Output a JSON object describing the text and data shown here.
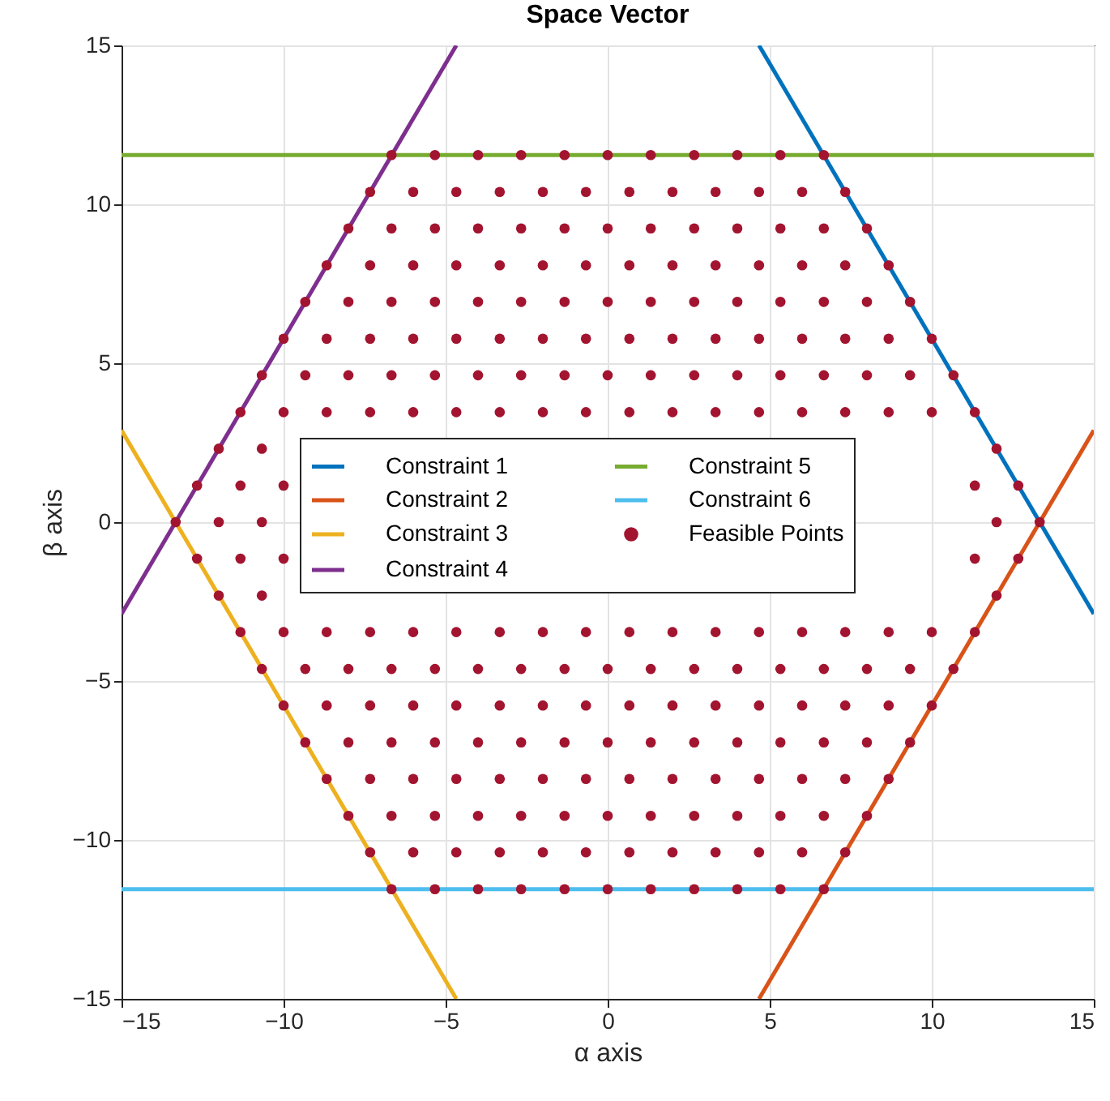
{
  "chart_data": {
    "type": "line",
    "title": "Space Vector",
    "xlabel": "α axis",
    "ylabel": "β axis",
    "xlim": [
      -15,
      15
    ],
    "ylim": [
      -15,
      15
    ],
    "xticks": [
      -15,
      -10,
      -5,
      0,
      5,
      10,
      15
    ],
    "yticks": [
      -15,
      -10,
      -5,
      0,
      5,
      10,
      15
    ],
    "grid": true,
    "legend": "center",
    "series": [
      {
        "name": "Constraint 1",
        "color": "#0072bd",
        "x": [
          4.67,
          15
        ],
        "values": [
          15,
          -2.89
        ]
      },
      {
        "name": "Constraint 2",
        "color": "#d95319",
        "x": [
          4.67,
          15
        ],
        "values": [
          -15,
          2.89
        ]
      },
      {
        "name": "Constraint 3",
        "color": "#edb120",
        "x": [
          -15,
          -4.67
        ],
        "values": [
          2.89,
          -15
        ]
      },
      {
        "name": "Constraint 4",
        "color": "#7e2f8e",
        "x": [
          -15,
          -4.67
        ],
        "values": [
          -2.89,
          15
        ]
      },
      {
        "name": "Constraint 5",
        "color": "#77ac30",
        "x": [
          -15,
          15
        ],
        "values": [
          11.55,
          11.55
        ]
      },
      {
        "name": "Constraint 6",
        "color": "#4dbeee",
        "x": [
          -15,
          15
        ],
        "values": [
          -11.55,
          -11.55
        ]
      },
      {
        "name": "Feasible Points",
        "type": "scatter",
        "marker": "circle",
        "color": "#a2142f",
        "x": [
          -6.67,
          -5.33,
          -4,
          -2.67,
          -1.33,
          0,
          1.33,
          2.67,
          4,
          5.33,
          6.67,
          -7.33,
          -6,
          -4.67,
          -3.33,
          -2,
          -0.67,
          0.67,
          2,
          3.33,
          4.67,
          6,
          7.33,
          -8,
          -6.67,
          -5.33,
          -4,
          -2.67,
          -1.33,
          0,
          1.33,
          2.67,
          4,
          5.33,
          6.67,
          8,
          -8.67,
          -7.33,
          -6,
          -4.67,
          -3.33,
          -2,
          -0.67,
          0.67,
          2,
          3.33,
          4.67,
          6,
          7.33,
          8.67,
          -9.33,
          -8,
          -6.67,
          -5.33,
          -4,
          -2.67,
          -1.33,
          0,
          1.33,
          2.67,
          4,
          5.33,
          6.67,
          8,
          9.33,
          -10,
          -8.67,
          -7.33,
          -6,
          -4.67,
          -3.33,
          -2,
          -0.67,
          0.67,
          2,
          3.33,
          4.67,
          6,
          7.33,
          8.67,
          10,
          -10.67,
          -9.33,
          -8,
          -6.67,
          -5.33,
          -4,
          -2.67,
          -1.33,
          0,
          1.33,
          2.67,
          4,
          5.33,
          6.67,
          8,
          9.33,
          10.67,
          -11.33,
          -10,
          -8.67,
          -7.33,
          -6,
          -4.67,
          -3.33,
          -2,
          -0.67,
          0.67,
          2,
          3.33,
          4.67,
          6,
          7.33,
          8.67,
          10,
          11.33,
          -12,
          -10.67,
          12,
          -12.67,
          -11.33,
          -10,
          11.33,
          12.67,
          -13.33,
          -12,
          -10.67,
          12,
          13.33,
          -12.67,
          -11.33,
          -10,
          11.33,
          12.67,
          -12,
          -10.67,
          12,
          -11.33,
          -10,
          -8.67,
          -7.33,
          -6,
          -4.67,
          -3.33,
          -2,
          -0.67,
          0.67,
          2,
          3.33,
          4.67,
          6,
          7.33,
          8.67,
          10,
          11.33,
          -10.67,
          -9.33,
          -8,
          -6.67,
          -5.33,
          -4,
          -2.67,
          -1.33,
          0,
          1.33,
          2.67,
          4,
          5.33,
          6.67,
          8,
          9.33,
          10.67,
          -10,
          -8.67,
          -7.33,
          -6,
          -4.67,
          -3.33,
          -2,
          -0.67,
          0.67,
          2,
          3.33,
          4.67,
          6,
          7.33,
          8.67,
          10,
          -9.33,
          -8,
          -6.67,
          -5.33,
          -4,
          -2.67,
          -1.33,
          0,
          1.33,
          2.67,
          4,
          5.33,
          6.67,
          8,
          9.33,
          -8.67,
          -7.33,
          -6,
          -4.67,
          -3.33,
          -2,
          -0.67,
          0.67,
          2,
          3.33,
          4.67,
          6,
          7.33,
          8.67,
          -8,
          -6.67,
          -5.33,
          -4,
          -2.67,
          -1.33,
          0,
          1.33,
          2.67,
          4,
          5.33,
          6.67,
          8,
          -7.33,
          -6,
          -4.67,
          -3.33,
          -2,
          -0.67,
          0.67,
          2,
          3.33,
          4.67,
          6,
          7.33,
          -6.67,
          -5.33,
          -4,
          -2.67,
          -1.33,
          0,
          1.33,
          2.67,
          4,
          5.33,
          6.67
        ],
        "values": [
          11.55,
          11.55,
          11.55,
          11.55,
          11.55,
          11.55,
          11.55,
          11.55,
          11.55,
          11.55,
          11.55,
          10.39,
          10.39,
          10.39,
          10.39,
          10.39,
          10.39,
          10.39,
          10.39,
          10.39,
          10.39,
          10.39,
          10.39,
          9.24,
          9.24,
          9.24,
          9.24,
          9.24,
          9.24,
          9.24,
          9.24,
          9.24,
          9.24,
          9.24,
          9.24,
          9.24,
          8.08,
          8.08,
          8.08,
          8.08,
          8.08,
          8.08,
          8.08,
          8.08,
          8.08,
          8.08,
          8.08,
          8.08,
          8.08,
          8.08,
          6.93,
          6.93,
          6.93,
          6.93,
          6.93,
          6.93,
          6.93,
          6.93,
          6.93,
          6.93,
          6.93,
          6.93,
          6.93,
          6.93,
          6.93,
          5.77,
          5.77,
          5.77,
          5.77,
          5.77,
          5.77,
          5.77,
          5.77,
          5.77,
          5.77,
          5.77,
          5.77,
          5.77,
          5.77,
          5.77,
          5.77,
          4.62,
          4.62,
          4.62,
          4.62,
          4.62,
          4.62,
          4.62,
          4.62,
          4.62,
          4.62,
          4.62,
          4.62,
          4.62,
          4.62,
          4.62,
          4.62,
          4.62,
          3.46,
          3.46,
          3.46,
          3.46,
          3.46,
          3.46,
          3.46,
          3.46,
          3.46,
          3.46,
          3.46,
          3.46,
          3.46,
          3.46,
          3.46,
          3.46,
          3.46,
          3.46,
          2.31,
          2.31,
          2.31,
          1.15,
          1.15,
          1.15,
          1.15,
          1.15,
          0,
          0,
          0,
          0,
          0,
          -1.15,
          -1.15,
          -1.15,
          -1.15,
          -1.15,
          -2.31,
          -2.31,
          -2.31,
          -3.46,
          -3.46,
          -3.46,
          -3.46,
          -3.46,
          -3.46,
          -3.46,
          -3.46,
          -3.46,
          -3.46,
          -3.46,
          -3.46,
          -3.46,
          -3.46,
          -3.46,
          -3.46,
          -3.46,
          -3.46,
          -4.62,
          -4.62,
          -4.62,
          -4.62,
          -4.62,
          -4.62,
          -4.62,
          -4.62,
          -4.62,
          -4.62,
          -4.62,
          -4.62,
          -4.62,
          -4.62,
          -4.62,
          -4.62,
          -4.62,
          -5.77,
          -5.77,
          -5.77,
          -5.77,
          -5.77,
          -5.77,
          -5.77,
          -5.77,
          -5.77,
          -5.77,
          -5.77,
          -5.77,
          -5.77,
          -5.77,
          -5.77,
          -5.77,
          -6.93,
          -6.93,
          -6.93,
          -6.93,
          -6.93,
          -6.93,
          -6.93,
          -6.93,
          -6.93,
          -6.93,
          -6.93,
          -6.93,
          -6.93,
          -6.93,
          -6.93,
          -8.08,
          -8.08,
          -8.08,
          -8.08,
          -8.08,
          -8.08,
          -8.08,
          -8.08,
          -8.08,
          -8.08,
          -8.08,
          -8.08,
          -8.08,
          -8.08,
          -9.24,
          -9.24,
          -9.24,
          -9.24,
          -9.24,
          -9.24,
          -9.24,
          -9.24,
          -9.24,
          -9.24,
          -9.24,
          -9.24,
          -9.24,
          -10.39,
          -10.39,
          -10.39,
          -10.39,
          -10.39,
          -10.39,
          -10.39,
          -10.39,
          -10.39,
          -10.39,
          -10.39,
          -10.39,
          -11.55,
          -11.55,
          -11.55,
          -11.55,
          -11.55,
          -11.55,
          -11.55,
          -11.55,
          -11.55,
          -11.55,
          -11.55
        ]
      }
    ]
  }
}
